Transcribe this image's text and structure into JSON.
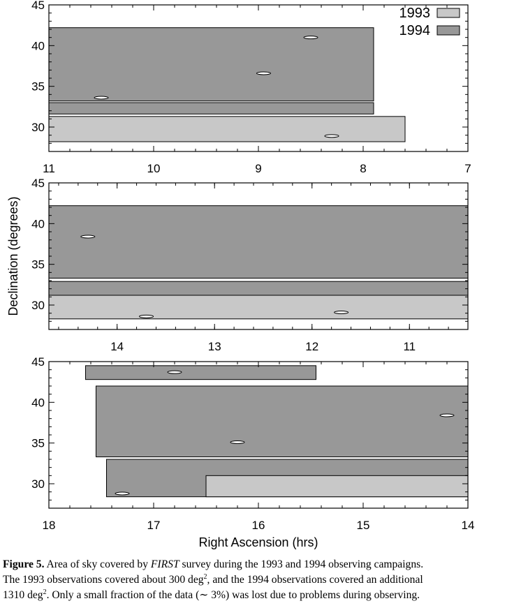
{
  "colors": {
    "y1993": "#c8c8c8",
    "y1994": "#989898",
    "background": "#ffffff",
    "axis": "#000000"
  },
  "chart_data": [
    {
      "type": "area",
      "panel": "top",
      "xlim": [
        11,
        7
      ],
      "ylim": [
        27,
        45
      ],
      "xticks": [
        "11",
        "10",
        "9",
        "8",
        "7"
      ],
      "yticks": [
        "45",
        "40",
        "35",
        "30"
      ],
      "legend": {
        "placement": "top-right",
        "entries": [
          {
            "label": "1993",
            "color": "#c8c8c8"
          },
          {
            "label": "1994",
            "color": "#989898"
          }
        ]
      },
      "regions": [
        {
          "year": "1994",
          "ra": [
            11.0,
            7.9
          ],
          "dec": [
            33.2,
            42.2
          ]
        },
        {
          "year": "1994",
          "ra": [
            11.0,
            7.9
          ],
          "dec": [
            31.6,
            33.0
          ]
        },
        {
          "year": "1993",
          "ra": [
            11.0,
            7.6
          ],
          "dec": [
            28.2,
            31.3
          ]
        }
      ],
      "holes": [
        {
          "ra": 10.5,
          "dec": 33.6
        },
        {
          "ra": 8.5,
          "dec": 41.0
        },
        {
          "ra": 8.95,
          "dec": 36.6
        },
        {
          "ra": 8.3,
          "dec": 28.9
        }
      ]
    },
    {
      "type": "area",
      "panel": "middle",
      "xlim": [
        14.7,
        10.4
      ],
      "ylim": [
        27,
        45
      ],
      "xticks": [
        "14",
        "13",
        "12",
        "11"
      ],
      "yticks": [
        "45",
        "40",
        "35",
        "30"
      ],
      "regions": [
        {
          "year": "1994",
          "ra": [
            14.7,
            10.4
          ],
          "dec": [
            33.3,
            42.2
          ]
        },
        {
          "year": "1994",
          "ra": [
            14.7,
            10.4
          ],
          "dec": [
            31.2,
            32.9
          ]
        },
        {
          "year": "1993",
          "ra": [
            14.7,
            10.4
          ],
          "dec": [
            28.3,
            31.2
          ]
        }
      ],
      "holes": [
        {
          "ra": 14.3,
          "dec": 38.4
        },
        {
          "ra": 13.7,
          "dec": 28.6
        },
        {
          "ra": 11.7,
          "dec": 29.1
        }
      ]
    },
    {
      "type": "area",
      "panel": "bottom",
      "xlim": [
        18,
        14
      ],
      "ylim": [
        27,
        45
      ],
      "xticks": [
        "18",
        "17",
        "16",
        "15",
        "14"
      ],
      "yticks": [
        "45",
        "40",
        "35",
        "30"
      ],
      "xlabel": "Right Ascension (hrs)",
      "regions": [
        {
          "year": "1994",
          "ra": [
            17.65,
            15.45
          ],
          "dec": [
            42.8,
            44.5
          ]
        },
        {
          "year": "1994",
          "ra": [
            17.55,
            14.0
          ],
          "dec": [
            33.3,
            42.0
          ]
        },
        {
          "year": "1994",
          "ra": [
            17.45,
            14.0
          ],
          "dec": [
            28.4,
            33.0
          ]
        },
        {
          "year": "1993",
          "ra": [
            16.5,
            14.0
          ],
          "dec": [
            28.4,
            31.0
          ]
        }
      ],
      "holes": [
        {
          "ra": 16.8,
          "dec": 43.7
        },
        {
          "ra": 14.2,
          "dec": 38.4
        },
        {
          "ra": 16.2,
          "dec": 35.1
        },
        {
          "ra": 17.3,
          "dec": 28.8
        }
      ]
    }
  ],
  "ylabel": "Declination (degrees)",
  "caption": {
    "fig_label": "Figure 5.",
    "l1_a": " Area of sky covered by ",
    "l1_b": "FIRST",
    "l1_c": " survey during the 1993 and 1994 observing campaigns.",
    "l2_a": "The 1993 observations covered about 300 deg",
    "l2_sup": "2",
    "l2_b": ", and the 1994 observations covered an additional",
    "l3_a": "1310 deg",
    "l3_sup": "2",
    "l3_b": ". Only a small fraction of the data (∼ 3%) was lost due to problems during observing."
  }
}
